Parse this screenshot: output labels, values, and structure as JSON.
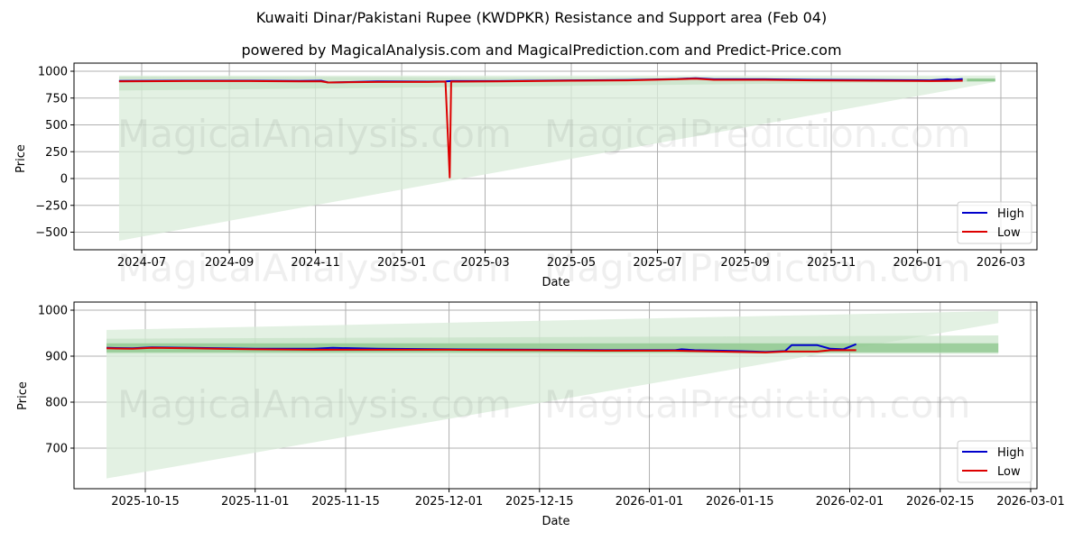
{
  "header": {
    "title": "Kuwaiti Dinar/Pakistani Rupee (KWDPKR) Resistance and Support area (Feb 04)",
    "subtitle": "powered by MagicalAnalysis.com and MagicalPrediction.com and Predict-Price.com"
  },
  "watermarks": [
    "MagicalAnalysis.com",
    "MagicalPrediction.com"
  ],
  "colors": {
    "high": "#0000cc",
    "low": "#dd0000",
    "band_light": "#d9ecd9",
    "band_mid": "#bfe0bf",
    "band_dark": "#8fc88f",
    "grid": "#b0b0b0"
  },
  "chart_data": [
    {
      "type": "line",
      "title": "KWDPKR full range",
      "xlabel": "Date",
      "ylabel": "Price",
      "ylim": [
        -650,
        1080
      ],
      "grid": true,
      "legend_position": "lower right",
      "x_ticks": [
        "2024-07",
        "2024-09",
        "2024-11",
        "2025-01",
        "2025-03",
        "2025-05",
        "2025-07",
        "2025-09",
        "2025-11",
        "2026-01",
        "2026-03"
      ],
      "y_ticks": [
        1000,
        750,
        500,
        250,
        0,
        -250,
        -500
      ],
      "legend": [
        "High",
        "Low"
      ],
      "series": [
        {
          "name": "High",
          "x": [
            "2024-06-15",
            "2024-08-01",
            "2024-09-15",
            "2024-10-20",
            "2024-11-05",
            "2024-11-10",
            "2024-12-15",
            "2025-01-20",
            "2025-02-01",
            "2025-02-05",
            "2025-03-10",
            "2025-05-01",
            "2025-06-10",
            "2025-07-15",
            "2025-07-28",
            "2025-08-10",
            "2025-09-15",
            "2025-10-20",
            "2025-12-01",
            "2026-01-10",
            "2026-01-22",
            "2026-01-26",
            "2026-02-02"
          ],
          "values": [
            910,
            912,
            912,
            910,
            912,
            895,
            905,
            903,
            905,
            908,
            908,
            915,
            918,
            928,
            935,
            925,
            925,
            920,
            918,
            915,
            925,
            920,
            928
          ]
        },
        {
          "name": "Low",
          "x": [
            "2024-06-15",
            "2024-08-01",
            "2024-09-15",
            "2024-10-20",
            "2024-11-05",
            "2024-11-10",
            "2024-12-15",
            "2025-01-20",
            "2025-02-01",
            "2025-02-04",
            "2025-02-05",
            "2025-03-10",
            "2025-05-01",
            "2025-06-10",
            "2025-07-15",
            "2025-07-28",
            "2025-08-10",
            "2025-09-15",
            "2025-10-20",
            "2025-12-01",
            "2026-01-10",
            "2026-01-22",
            "2026-02-02"
          ],
          "values": [
            905,
            908,
            908,
            906,
            905,
            895,
            900,
            900,
            903,
            10,
            903,
            905,
            912,
            915,
            925,
            930,
            920,
            920,
            915,
            912,
            908,
            910,
            912
          ]
        }
      ],
      "bands": [
        {
          "name": "resistance-support-outer",
          "x_start": "2024-06-15",
          "x_end": "2026-02-25",
          "upper": [
            960,
            960
          ],
          "lower": [
            -580,
            900
          ]
        },
        {
          "name": "resistance-support-inner",
          "x_start": "2024-06-15",
          "x_end": "2026-02-25",
          "upper": [
            950,
            935
          ],
          "lower": [
            820,
            905
          ]
        }
      ]
    },
    {
      "type": "line",
      "title": "KWDPKR recent",
      "xlabel": "Date",
      "ylabel": "Price",
      "ylim": [
        610,
        1015
      ],
      "grid": true,
      "legend_position": "lower right",
      "x_ticks": [
        "2025-10-15",
        "2025-11-01",
        "2025-11-15",
        "2025-12-01",
        "2025-12-15",
        "2026-01-01",
        "2026-01-15",
        "2026-02-01",
        "2026-02-15",
        "2026-03-01"
      ],
      "y_ticks": [
        1000,
        900,
        800,
        700
      ],
      "legend": [
        "High",
        "Low"
      ],
      "series": [
        {
          "name": "High",
          "x": [
            "2025-10-09",
            "2025-10-13",
            "2025-10-16",
            "2025-10-22",
            "2025-11-01",
            "2025-11-10",
            "2025-11-13",
            "2025-11-20",
            "2025-12-01",
            "2025-12-15",
            "2025-12-25",
            "2026-01-05",
            "2026-01-06",
            "2026-01-08",
            "2026-01-15",
            "2026-01-19",
            "2026-01-22",
            "2026-01-23",
            "2026-01-27",
            "2026-01-29",
            "2026-01-31",
            "2026-02-02"
          ],
          "values": [
            918,
            917,
            919,
            918,
            916,
            916,
            918,
            916,
            915,
            914,
            913,
            913,
            915,
            913,
            911,
            909,
            911,
            924,
            924,
            916,
            915,
            926
          ]
        },
        {
          "name": "Low",
          "x": [
            "2025-10-09",
            "2025-10-13",
            "2025-10-16",
            "2025-10-22",
            "2025-11-01",
            "2025-11-10",
            "2025-11-20",
            "2025-12-01",
            "2025-12-15",
            "2025-12-25",
            "2026-01-05",
            "2026-01-08",
            "2026-01-15",
            "2026-01-19",
            "2026-01-22",
            "2026-01-27",
            "2026-01-29",
            "2026-02-02"
          ],
          "values": [
            917,
            916,
            918,
            917,
            915,
            914,
            914,
            914,
            913,
            912,
            912,
            911,
            909,
            908,
            910,
            910,
            913,
            913
          ]
        }
      ],
      "bands": [
        {
          "name": "outer",
          "x_start": "2025-10-09",
          "x_end": "2026-02-24",
          "upper": [
            957,
            998
          ],
          "lower": [
            634,
            972
          ]
        },
        {
          "name": "mid",
          "x_start": "2025-10-09",
          "x_end": "2026-02-24",
          "upper": [
            938,
            945
          ],
          "lower": [
            905,
            905
          ]
        },
        {
          "name": "inner",
          "x_start": "2025-10-09",
          "x_end": "2026-02-24",
          "upper": [
            928,
            928
          ],
          "lower": [
            908,
            908
          ]
        }
      ]
    }
  ]
}
